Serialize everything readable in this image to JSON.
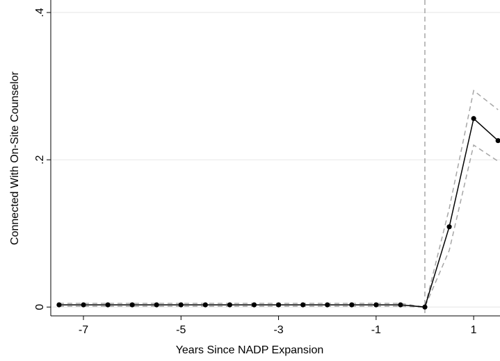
{
  "chart_data": {
    "type": "line",
    "x_label": "Years Since NADP Expansion",
    "y_label": "Connected With On-Site Counselor",
    "x": [
      -7.5,
      -7,
      -6.5,
      -6,
      -5.5,
      -5,
      -4.5,
      -4,
      -3.5,
      -3,
      -2.5,
      -2,
      -1.5,
      -1,
      -0.5,
      0,
      0.5,
      1,
      1.5
    ],
    "values": [
      0.003,
      0.003,
      0.003,
      0.003,
      0.003,
      0.003,
      0.003,
      0.003,
      0.003,
      0.003,
      0.003,
      0.003,
      0.003,
      0.003,
      0.003,
      0,
      0.109,
      0.256,
      0.226
    ],
    "ci_upper": [
      0.005,
      0.005,
      0.005,
      0.005,
      0.005,
      0.005,
      0.005,
      0.005,
      0.005,
      0.005,
      0.005,
      0.005,
      0.005,
      0.005,
      0.005,
      0,
      0.134,
      0.294,
      0.268
    ],
    "ci_lower": [
      0.001,
      0.001,
      0.001,
      0.001,
      0.001,
      0.001,
      0.001,
      0.001,
      0.001,
      0.001,
      0.001,
      0.001,
      0.001,
      0.001,
      0.001,
      0,
      0.077,
      0.22,
      0.198
    ],
    "color": "#000000",
    "ci_color": "#a6a6a6",
    "vline": 0,
    "xlim": [
      -7.67,
      1.54
    ],
    "ylim": [
      -0.012,
      0.417
    ],
    "xticks": [
      -7,
      -5,
      -3,
      -1,
      1
    ],
    "yticks": [
      0,
      {
        "value": 0.2,
        "label": ".2"
      },
      {
        "value": 0.4,
        "label": ".4"
      }
    ],
    "grid": true
  }
}
